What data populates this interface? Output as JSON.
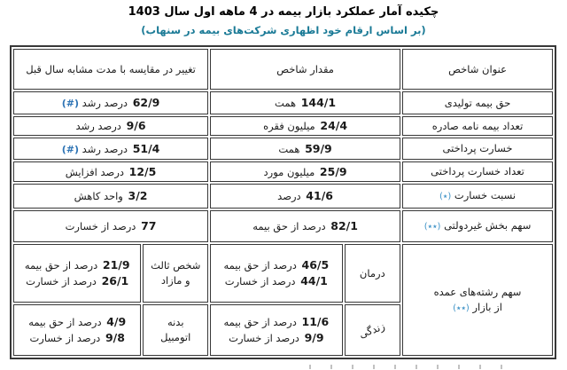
{
  "page": {
    "title": "چکیده آمار عملکرد بازار بیمه در 4 ماهه اول سال 1403",
    "subtitle": "(بر اساس ارقام خود اظهاری شرکت‌های بیمه در سنهاب)"
  },
  "colors": {
    "subtitle_teal": "#1a7a96",
    "hash_marker_blue": "#2e74b5",
    "star_marker_blue": "#3f93c7",
    "border": "#383838"
  },
  "table": {
    "headers": {
      "indicator": "عنوان شاخص",
      "value": "مقدار شاخص",
      "change": "تغییر در مقایسه با مدت مشابه سال قبل"
    },
    "rows": [
      {
        "indicator": "حق بیمه تولیدی",
        "indicator_marker": "",
        "value_num": "144/1",
        "value_unit": "همت",
        "change_num": "62/9",
        "change_text": "درصد رشد",
        "change_marker": "(#)"
      },
      {
        "indicator": "تعداد بیمه نامه صادره",
        "indicator_marker": "",
        "value_num": "24/4",
        "value_unit": "میلیون فقره",
        "change_num": "9/6",
        "change_text": "درصد رشد",
        "change_marker": ""
      },
      {
        "indicator": "خسارت پرداختی",
        "indicator_marker": "",
        "value_num": "59/9",
        "value_unit": "همت",
        "change_num": "51/4",
        "change_text": "درصد رشد",
        "change_marker": "(#)"
      },
      {
        "indicator": "تعداد خسارت پرداختی",
        "indicator_marker": "",
        "value_num": "25/9",
        "value_unit": "میلیون مورد",
        "change_num": "12/5",
        "change_text": "درصد افزایش",
        "change_marker": ""
      },
      {
        "indicator": "نسبت خسارت",
        "indicator_marker": "(٭)",
        "value_num": "41/6",
        "value_unit": "درصد",
        "change_num": "3/2",
        "change_text": "واحد کاهش",
        "change_marker": ""
      },
      {
        "indicator": "سهم بخش غیردولتی",
        "indicator_marker": "(٭٭)",
        "value_num": "82/1",
        "value_unit": "درصد از حق بیمه",
        "change_num": "77",
        "change_text": "درصد از خسارت",
        "change_marker": ""
      }
    ],
    "major_lines": {
      "indicator_line1": "سهم رشته‌های عمده",
      "indicator_line2": "از بازار",
      "indicator_marker": "(٭٭)",
      "rows": [
        {
          "mid_label": "درمان",
          "mid_premium_num": "46/5",
          "mid_premium_text": "درصد از حق بیمه",
          "mid_claims_num": "44/1",
          "mid_claims_text": "درصد از خسارت",
          "left_label_line1": "شخص ثالث",
          "left_label_line2": "و مازاد",
          "left_premium_num": "21/9",
          "left_premium_text": "درصد از حق بیمه",
          "left_claims_num": "26/1",
          "left_claims_text": "درصد از خسارت"
        },
        {
          "mid_label": "زندگی",
          "mid_premium_num": "11/6",
          "mid_premium_text": "درصد از حق بیمه",
          "mid_claims_num": "9/9",
          "mid_claims_text": "درصد از خسارت",
          "left_label_line1": "بدنه",
          "left_label_line2": "اتومبیل",
          "left_premium_num": "4/9",
          "left_premium_text": "درصد از حق بیمه",
          "left_claims_num": "9/8",
          "left_claims_text": "درصد از خسارت"
        }
      ]
    }
  },
  "chart_data": {
    "type": "table",
    "title": "چکیده آمار عملکرد بازار بیمه در 4 ماهه اول سال 1403",
    "subtitle": "(بر اساس ارقام خود اظهاری شرکت‌های بیمه در سنهاب)",
    "columns": [
      "عنوان شاخص",
      "مقدار شاخص",
      "تغییر در مقایسه با مدت مشابه سال قبل"
    ],
    "rows": [
      [
        "حق بیمه تولیدی",
        "144/1 همت",
        "62/9 درصد رشد (#)"
      ],
      [
        "تعداد بیمه نامه صادره",
        "24/4 میلیون فقره",
        "9/6 درصد رشد"
      ],
      [
        "خسارت پرداختی",
        "59/9 همت",
        "51/4 درصد رشد (#)"
      ],
      [
        "تعداد خسارت پرداختی",
        "25/9 میلیون مورد",
        "12/5 درصد افزایش"
      ],
      [
        "نسبت خسارت (٭)",
        "41/6 درصد",
        "3/2 واحد کاهش"
      ],
      [
        "سهم بخش غیردولتی (٭٭)",
        "82/1 درصد از حق بیمه",
        "77 درصد از خسارت"
      ],
      [
        "سهم رشته‌های عمده از بازار (٭٭) - درمان",
        "46/5 درصد از حق بیمه، 44/1 درصد از خسارت",
        "شخص ثالث و مازاد: 21/9 درصد از حق بیمه، 26/1 درصد از خسارت"
      ],
      [
        "سهم رشته‌های عمده از بازار (٭٭) - زندگی",
        "11/6 درصد از حق بیمه، 9/9 درصد از خسارت",
        "بدنه اتومبیل: 4/9 درصد از حق بیمه، 9/8 درصد از خسارت"
      ]
    ],
    "layout_hints": {
      "direction": "rtl",
      "grid": true,
      "decimal_separator": "/"
    }
  }
}
